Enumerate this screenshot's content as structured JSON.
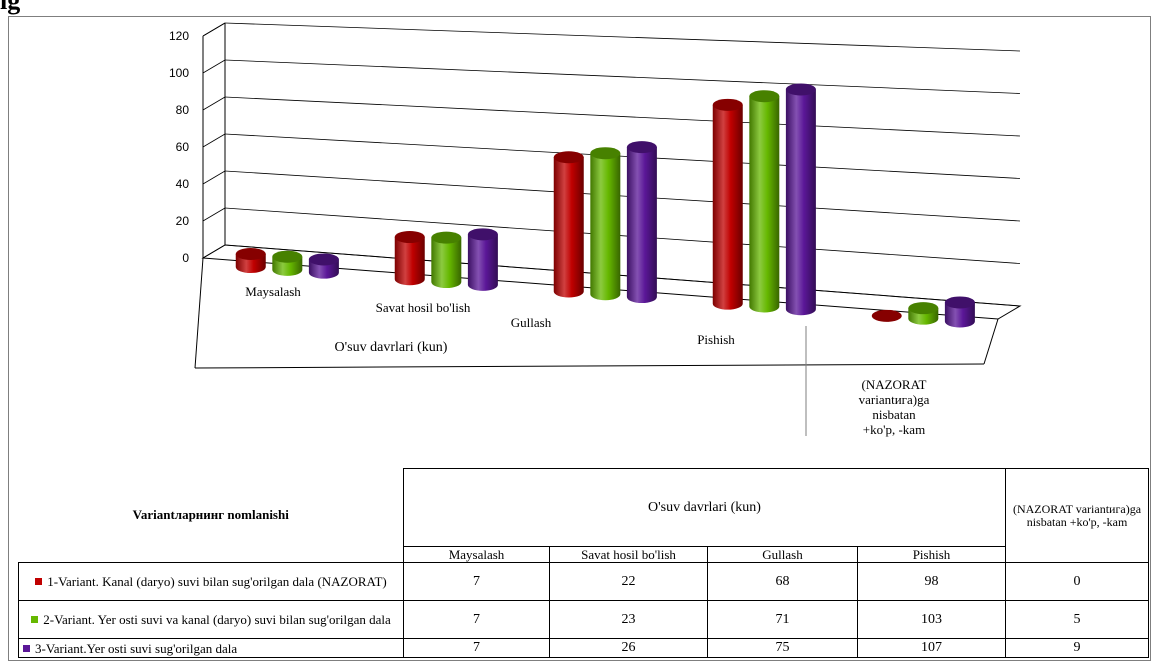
{
  "heading": "ig",
  "colors": {
    "red": "#c00000",
    "green": "#66b800",
    "purple": "#5b1798"
  },
  "chart_data": {
    "type": "bar",
    "categories": [
      "Maysalash",
      "Savat hosil bo'lish",
      "Gullash",
      "Pishish",
      "(NAZORAT variantига)ga nisbatan +ko'p, -kam"
    ],
    "category_lines": [
      [
        "Maysalash"
      ],
      [
        "Savat hosil bo'lish"
      ],
      [
        "Gullash"
      ],
      [
        "Pishish"
      ],
      [
        "(NAZORAT",
        "variantига)ga",
        "nisbatan",
        "+ko'p, -kam"
      ]
    ],
    "series": [
      {
        "name": "1-Variant. Kanal (daryo) suvi bilan sug'orilgan dala (NAZORAT)",
        "values": [
          7,
          22,
          68,
          98,
          0
        ]
      },
      {
        "name": "2-Variant. Yer osti suvi va kanal (daryo) suvi bilan sug'orilgan dala",
        "values": [
          7,
          23,
          71,
          103,
          5
        ]
      },
      {
        "name": "3-Variant.Yer osti suvi sug'orilgan dala",
        "values": [
          7,
          26,
          75,
          107,
          9
        ]
      }
    ],
    "y_ticks": [
      0,
      20,
      40,
      60,
      80,
      100,
      120
    ],
    "ylim": [
      0,
      120
    ],
    "xlabel": "O'suv davrlari (kun)",
    "ylabel": "",
    "grid": true,
    "legend": "data table below chart"
  },
  "table": {
    "row_header": "Variantларнинг nomlanishi",
    "group_header": "O'suv davrlari (kun)",
    "last_header": "(NAZORAT variantига)ga nisbatan +ko'p, -kam",
    "rows": [
      {
        "label": "1-Variant. Kanal (daryo) suvi bilan sug'orilgan dala (NAZORAT)",
        "values": [
          "7",
          "22",
          "68",
          "98",
          "0"
        ]
      },
      {
        "label": "2-Variant. Yer osti suvi va kanal (daryo) suvi bilan sug'orilgan dala",
        "values": [
          "7",
          "23",
          "71",
          "103",
          "5"
        ]
      },
      {
        "label": "3-Variant.Yer osti suvi sug'orilgan dala",
        "values": [
          "7",
          "26",
          "75",
          "107",
          "9"
        ]
      }
    ]
  }
}
